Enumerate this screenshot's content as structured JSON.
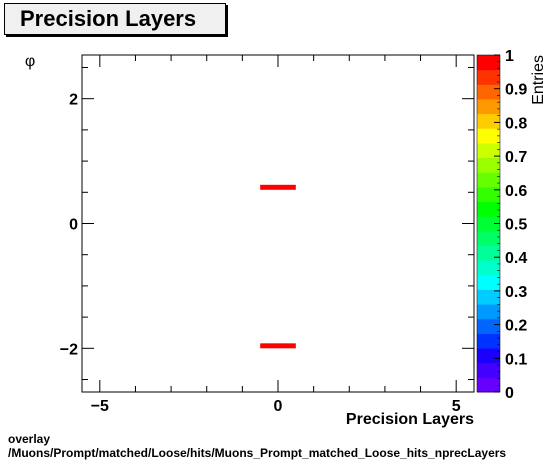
{
  "chart_data": {
    "type": "heatmap",
    "title": "Precision Layers",
    "xlabel": "Precision Layers",
    "ylabel": "φ",
    "zlabel": "Entries",
    "xlim": [
      -5.5,
      5.5
    ],
    "ylim": [
      -2.7,
      2.7
    ],
    "zlim": [
      0,
      1
    ],
    "x_ticks": [
      -5,
      0,
      5
    ],
    "x_tick_labels": [
      "−5",
      "0",
      "5"
    ],
    "y_ticks": [
      -2,
      0,
      2
    ],
    "y_tick_labels": [
      "−2",
      "0",
      "2"
    ],
    "z_ticks": [
      0,
      0.1,
      0.2,
      0.3,
      0.4,
      0.5,
      0.6,
      0.7,
      0.8,
      0.9,
      1
    ],
    "z_tick_labels": [
      "0",
      "0.1",
      "0.2",
      "0.3",
      "0.4",
      "0.5",
      "0.6",
      "0.7",
      "0.8",
      "0.9",
      "1"
    ],
    "cells": [
      {
        "x0": -0.5,
        "x1": 0.5,
        "y0": 0.54,
        "y1": 0.62,
        "value": 1
      },
      {
        "x0": -0.5,
        "x1": 0.5,
        "y0": -2.0,
        "y1": -1.92,
        "value": 1
      }
    ],
    "palette": [
      "#6600ff",
      "#4400ff",
      "#1a00ff",
      "#0033ff",
      "#0066ff",
      "#0099ff",
      "#00ccff",
      "#00ffff",
      "#00ffcc",
      "#00ff99",
      "#00ff66",
      "#00ff33",
      "#00ff00",
      "#33ff00",
      "#66ff00",
      "#99ff00",
      "#ccff00",
      "#ffff00",
      "#ffcc00",
      "#ff9900",
      "#ff6600",
      "#ff3300",
      "#ff0000"
    ],
    "cell_color": "#ff0000"
  },
  "footer": {
    "line1": "overlay",
    "line2": "/Muons/Prompt/matched/Loose/hits/Muons_Prompt_matched_Loose_hits_nprecLayers"
  }
}
